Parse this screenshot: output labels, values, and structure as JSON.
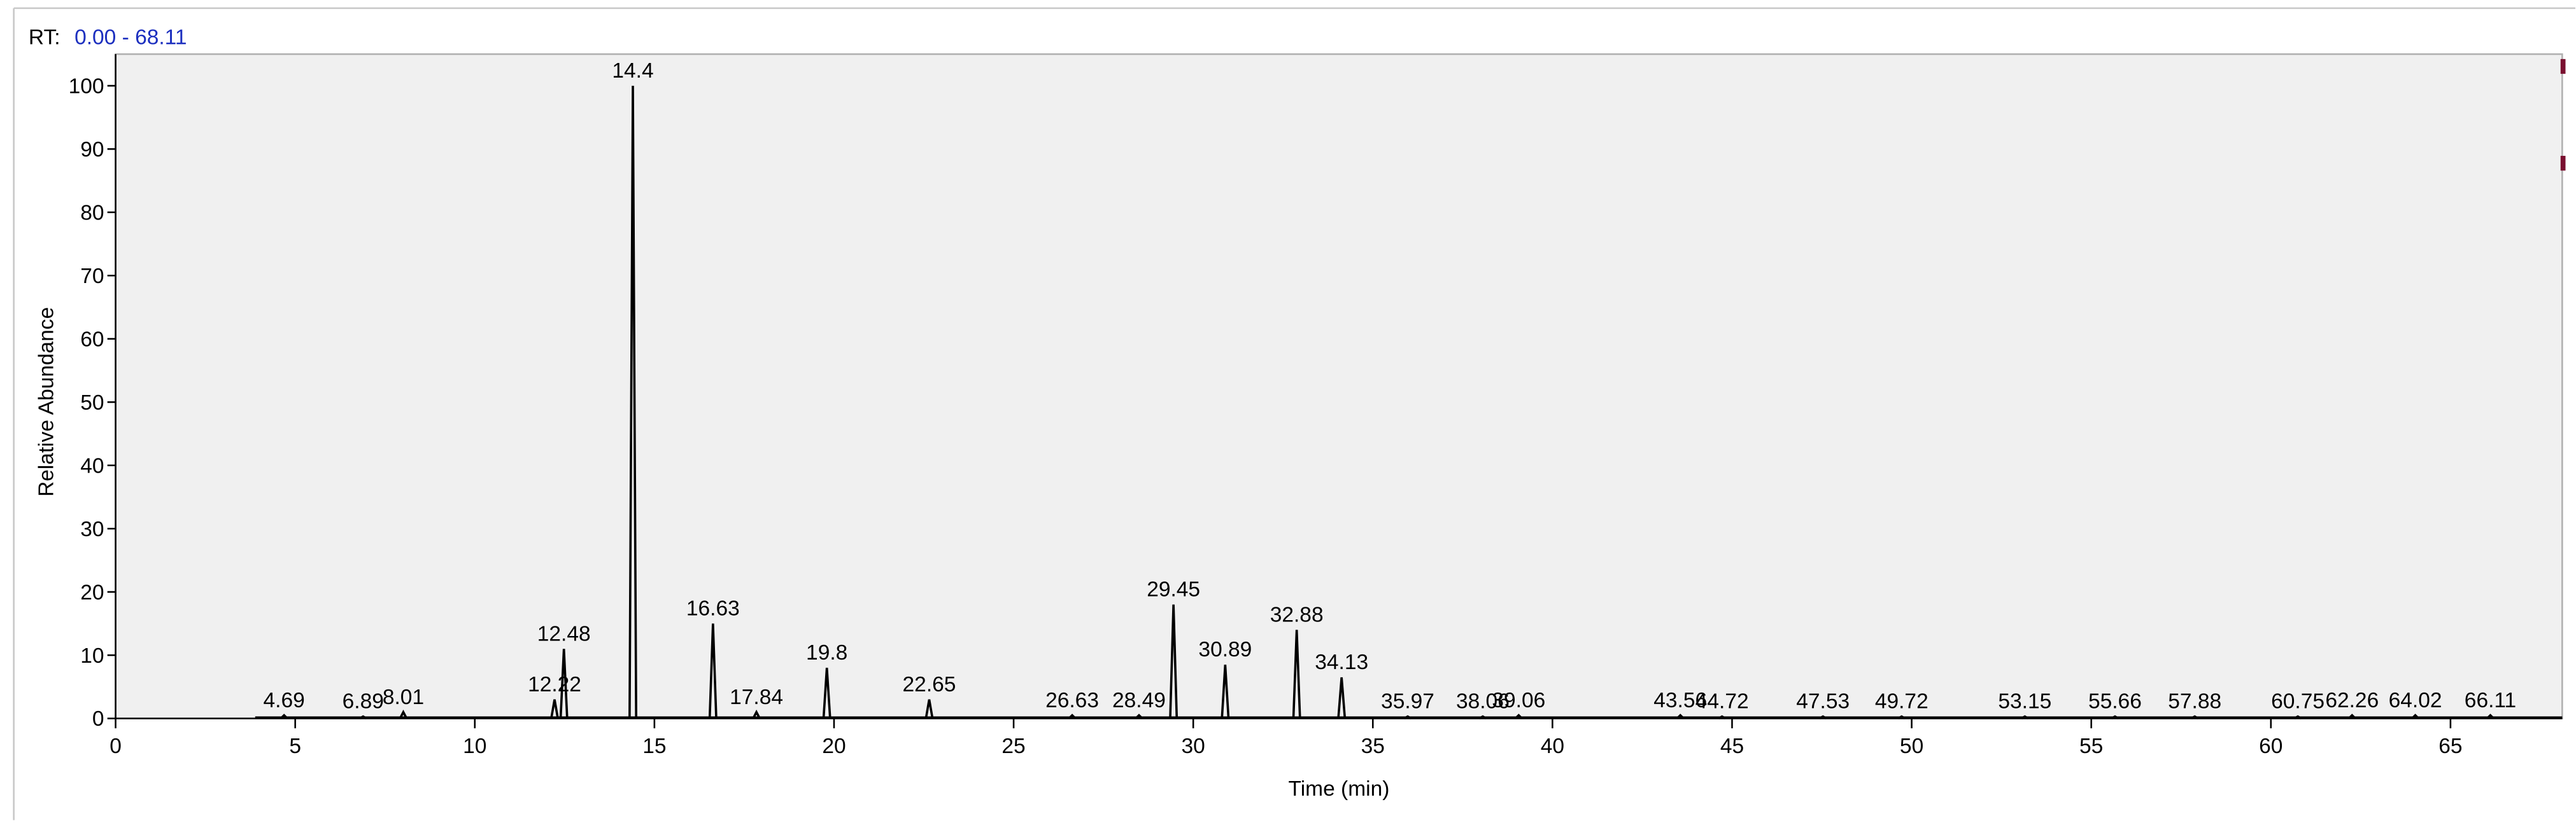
{
  "chart_data": {
    "type": "chromatogram",
    "rt_label": "RT:",
    "rt_range": "0.00 - 68.11",
    "xlabel": "Time (min)",
    "ylabel": "Relative Abundance",
    "xlim": [
      0,
      68.11
    ],
    "ylim": [
      0,
      105
    ],
    "xticks": [
      0,
      5,
      10,
      15,
      20,
      25,
      30,
      35,
      40,
      45,
      50,
      55,
      60,
      65
    ],
    "yticks": [
      0,
      10,
      20,
      30,
      40,
      50,
      60,
      70,
      80,
      90,
      100
    ],
    "color": "#000000",
    "x": [
      4.69,
      6.89,
      8.01,
      12.22,
      12.48,
      14.4,
      16.63,
      17.84,
      19.8,
      22.65,
      26.63,
      28.49,
      29.45,
      30.89,
      32.88,
      34.13,
      35.97,
      38.06,
      39.06,
      43.56,
      44.72,
      47.53,
      49.72,
      53.15,
      55.66,
      57.88,
      60.75,
      62.26,
      64.02,
      66.11
    ],
    "values": [
      0.5,
      0.3,
      1,
      3,
      11,
      100,
      15,
      1,
      8,
      3,
      0.5,
      0.5,
      18,
      8.5,
      14,
      6.5,
      0.3,
      0.3,
      0.5,
      0.5,
      0.3,
      0.3,
      0.3,
      0.3,
      0.3,
      0.3,
      0.3,
      0.5,
      0.5,
      0.5
    ]
  }
}
